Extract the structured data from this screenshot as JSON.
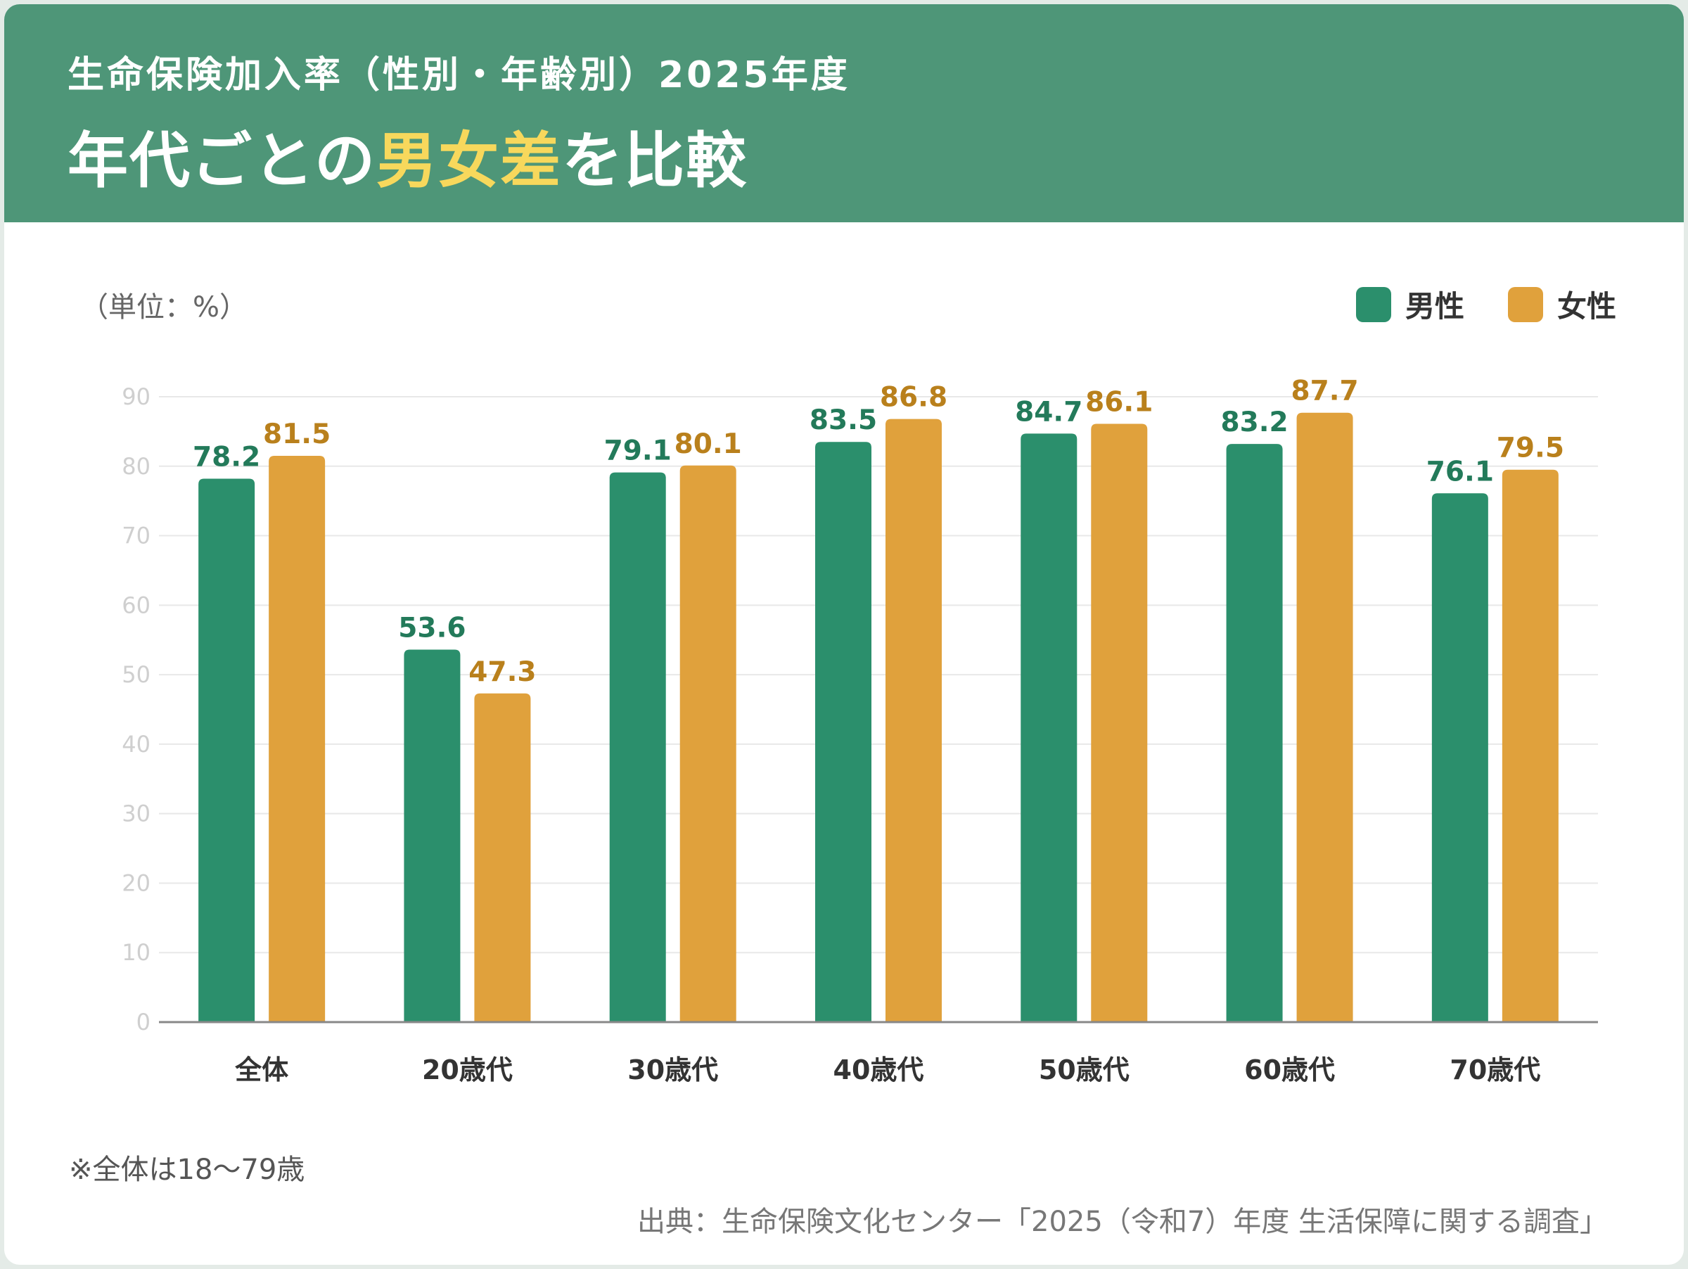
{
  "header": {
    "subtitle": "生命保険加入率（性別・年齢別）2025年度",
    "title_prefix": "年代ごとの",
    "title_highlight": "男女差",
    "title_suffix": "を比較"
  },
  "unit_label": "（単位：%）",
  "note": "※全体は18〜79歳",
  "source": "出典：生命保険文化センター「2025（令和7）年度 生活保障に関する調査」",
  "colors": {
    "header_bg": "#4e9678",
    "highlight": "#f7d85c",
    "male": "#2b8f6c",
    "female": "#e0a13c",
    "male_label": "#237a5a",
    "female_label": "#b9801c"
  },
  "chart_data": {
    "type": "bar",
    "categories": [
      "全体",
      "20歳代",
      "30歳代",
      "40歳代",
      "50歳代",
      "60歳代",
      "70歳代"
    ],
    "series": [
      {
        "name": "男性",
        "values": [
          78.2,
          53.6,
          79.1,
          83.5,
          84.7,
          83.2,
          76.1
        ]
      },
      {
        "name": "女性",
        "values": [
          81.5,
          47.3,
          80.1,
          86.8,
          86.1,
          87.7,
          79.5
        ]
      }
    ],
    "ylim": [
      0,
      90
    ],
    "yticks": [
      0,
      10,
      20,
      30,
      40,
      50,
      60,
      70,
      80,
      90
    ],
    "grid": true,
    "legend_position": "top-right"
  }
}
